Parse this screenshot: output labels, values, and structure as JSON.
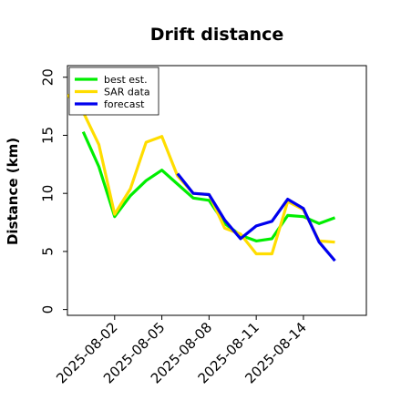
{
  "chart_data": {
    "type": "line",
    "title": "Drift distance",
    "xlabel": "",
    "ylabel": "Distance (km)",
    "ylim": [
      -0.5,
      21.0
    ],
    "yticks": [
      0,
      5,
      10,
      15,
      20
    ],
    "xticks": [
      "2025-08-02",
      "2025-08-05",
      "2025-08-08",
      "2025-08-11",
      "2025-08-14"
    ],
    "xlim": [
      "2025-07-30",
      "2025-08-18"
    ],
    "legend_position": "top-left",
    "grid": false,
    "series": [
      {
        "name": "best est.",
        "color": "#00ee00",
        "points": [
          [
            "2025-07-31",
            15.3
          ],
          [
            "2025-08-01",
            12.3
          ],
          [
            "2025-08-02",
            8.0
          ],
          [
            "2025-08-03",
            9.8
          ],
          [
            "2025-08-04",
            11.1
          ],
          [
            "2025-08-05",
            12.0
          ],
          [
            "2025-08-06",
            10.8
          ],
          [
            "2025-08-07",
            9.6
          ],
          [
            "2025-08-08",
            9.4
          ],
          [
            "2025-08-09",
            7.4
          ],
          [
            "2025-08-10",
            6.4
          ],
          [
            "2025-08-11",
            5.9
          ],
          [
            "2025-08-12",
            6.1
          ],
          [
            "2025-08-13",
            8.1
          ],
          [
            "2025-08-14",
            8.0
          ],
          [
            "2025-08-15",
            7.4
          ],
          [
            "2025-08-16",
            7.9
          ]
        ]
      },
      {
        "name": "SAR data",
        "color": "#ffdd00",
        "points": [
          [
            "2025-07-30",
            18.5
          ],
          [
            "2025-07-31",
            17.0
          ],
          [
            "2025-08-01",
            14.2
          ],
          [
            "2025-08-02",
            8.2
          ],
          [
            "2025-08-03",
            10.4
          ],
          [
            "2025-08-04",
            14.4
          ],
          [
            "2025-08-05",
            14.9
          ],
          [
            "2025-08-06",
            11.5
          ],
          [
            "2025-08-07",
            10.0
          ],
          [
            "2025-08-08",
            9.9
          ],
          [
            "2025-08-09",
            7.0
          ],
          [
            "2025-08-10",
            6.5
          ],
          [
            "2025-08-11",
            4.8
          ],
          [
            "2025-08-12",
            4.8
          ],
          [
            "2025-08-13",
            9.3
          ],
          [
            "2025-08-14",
            8.6
          ],
          [
            "2025-08-15",
            5.9
          ],
          [
            "2025-08-16",
            5.8
          ]
        ]
      },
      {
        "name": "forecast",
        "color": "#0000ee",
        "points": [
          [
            "2025-08-06",
            11.7
          ],
          [
            "2025-08-07",
            10.0
          ],
          [
            "2025-08-08",
            9.9
          ],
          [
            "2025-08-09",
            7.7
          ],
          [
            "2025-08-10",
            6.1
          ],
          [
            "2025-08-11",
            7.2
          ],
          [
            "2025-08-12",
            7.6
          ],
          [
            "2025-08-13",
            9.5
          ],
          [
            "2025-08-14",
            8.7
          ],
          [
            "2025-08-15",
            5.8
          ],
          [
            "2025-08-16",
            4.2
          ]
        ]
      }
    ]
  }
}
